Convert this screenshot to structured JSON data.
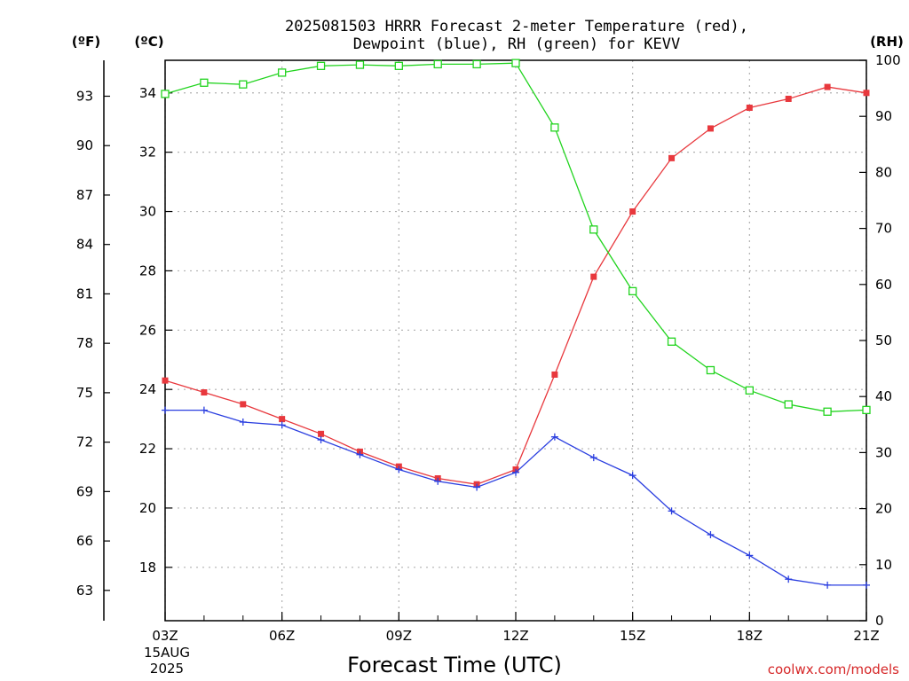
{
  "chart_data": {
    "type": "line",
    "title_line1": "2025081503 HRRR Forecast 2-meter Temperature (red),",
    "title_line2": "Dewpoint (blue), RH (green) for KEVV",
    "xlabel": "Forecast Time (UTC)",
    "credit": "coolwx.com/models",
    "date_label": [
      "15AUG",
      "2025"
    ],
    "units": {
      "f": "(ºF)",
      "c": "(ºC)",
      "rh": "(RH)"
    },
    "x_hours": [
      3,
      4,
      5,
      6,
      7,
      8,
      9,
      10,
      11,
      12,
      13,
      14,
      15,
      16,
      17,
      18,
      19,
      20,
      21
    ],
    "x_ticks": [
      {
        "hour": 3,
        "label": "03Z"
      },
      {
        "hour": 6,
        "label": "06Z"
      },
      {
        "hour": 9,
        "label": "09Z"
      },
      {
        "hour": 12,
        "label": "12Z"
      },
      {
        "hour": 15,
        "label": "15Z"
      },
      {
        "hour": 18,
        "label": "18Z"
      },
      {
        "hour": 21,
        "label": "21Z"
      }
    ],
    "xlim": [
      3,
      21
    ],
    "ylim_c": [
      16.2,
      35.1
    ],
    "ylim_rh": [
      0,
      100
    ],
    "ticks_c": [
      18,
      20,
      22,
      24,
      26,
      28,
      30,
      32,
      34
    ],
    "ticks_f": [
      63,
      66,
      69,
      72,
      75,
      78,
      81,
      84,
      87,
      90,
      93
    ],
    "ticks_rh": [
      0,
      10,
      20,
      30,
      40,
      50,
      60,
      70,
      80,
      90,
      100
    ],
    "series": [
      {
        "name": "Temperature",
        "color": "#e8383d",
        "marker": "filled-square",
        "axis": "c",
        "values": [
          24.3,
          23.9,
          23.5,
          23.0,
          22.5,
          21.9,
          21.4,
          21.0,
          20.8,
          21.3,
          24.5,
          27.8,
          30.0,
          31.8,
          32.8,
          33.5,
          33.8,
          34.2,
          34.0
        ]
      },
      {
        "name": "Dewpoint",
        "color": "#2b3fe0",
        "marker": "plus",
        "axis": "c",
        "values": [
          23.3,
          23.3,
          22.9,
          22.8,
          22.3,
          21.8,
          21.3,
          20.9,
          20.7,
          21.2,
          22.4,
          21.7,
          21.1,
          19.9,
          19.1,
          18.4,
          17.6,
          17.4,
          17.4
        ]
      },
      {
        "name": "RH",
        "color": "#22d41f",
        "marker": "open-square",
        "axis": "rh",
        "values": [
          94.0,
          96.0,
          95.7,
          97.8,
          99.0,
          99.2,
          99.0,
          99.3,
          99.3,
          99.5,
          88.0,
          69.8,
          58.8,
          49.8,
          44.7,
          41.1,
          38.6,
          37.3,
          37.6
        ]
      }
    ]
  }
}
